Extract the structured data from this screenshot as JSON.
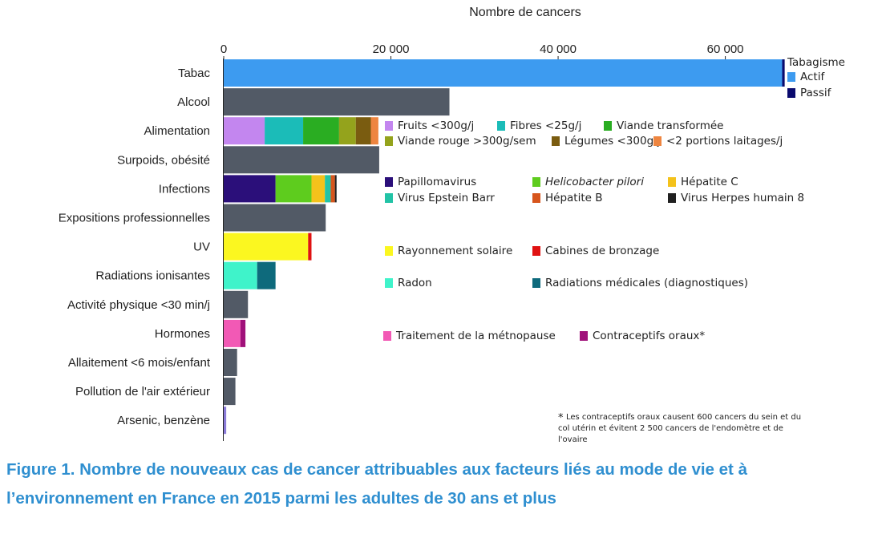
{
  "chart_data": {
    "type": "bar",
    "orientation": "horizontal",
    "stacked": true,
    "title": "Nombre de cancers",
    "xlim": [
      0,
      68000
    ],
    "xticks": [
      "0",
      "20 000",
      "40 000",
      "60 000"
    ],
    "xtick_values": [
      0,
      20000,
      40000,
      60000
    ],
    "categories": [
      {
        "label": "Tabac",
        "segments": [
          {
            "name": "Actif",
            "value": 66800,
            "color": "#3d9bf0"
          },
          {
            "name": "Passif",
            "value": 300,
            "color": "#0a0a6e"
          }
        ]
      },
      {
        "label": "Alcool",
        "segments": [
          {
            "name": "Alcool",
            "value": 27000,
            "color": "#525a66"
          }
        ]
      },
      {
        "label": "Alimentation",
        "segments": [
          {
            "name": "Fruits <300g/j",
            "value": 4900,
            "color": "#c386ef"
          },
          {
            "name": "Fibres <25g/j",
            "value": 4600,
            "color": "#1bbcb8"
          },
          {
            "name": "Viande transformée",
            "value": 4300,
            "color": "#2aad22"
          },
          {
            "name": "Viande rouge >300g/sem",
            "value": 2000,
            "color": "#94a31c"
          },
          {
            "name": "Légumes <300g/j",
            "value": 1800,
            "color": "#7a5c10"
          },
          {
            "name": "<2 portions laitages/j",
            "value": 900,
            "color": "#ee8540"
          }
        ]
      },
      {
        "label": "Surpoids, obésité",
        "segments": [
          {
            "name": "Surpoids, obésité",
            "value": 18600,
            "color": "#525a66"
          }
        ]
      },
      {
        "label": "Infections",
        "segments": [
          {
            "name": "Papillomavirus",
            "value": 6200,
            "color": "#2b0f7a"
          },
          {
            "name": "Helicobacter pilori",
            "value": 4300,
            "color": "#5ecc1e"
          },
          {
            "name": "Hépatite C",
            "value": 1600,
            "color": "#f4c21b"
          },
          {
            "name": "Virus Epstein Barr",
            "value": 700,
            "color": "#22c3a6"
          },
          {
            "name": "Hépatite B",
            "value": 500,
            "color": "#d7551c"
          },
          {
            "name": "Virus Herpes humain 8",
            "value": 200,
            "color": "#202020"
          }
        ]
      },
      {
        "label": "Expositions professionnelles",
        "segments": [
          {
            "name": "Expositions professionnelles",
            "value": 12200,
            "color": "#525a66"
          }
        ]
      },
      {
        "label": "UV",
        "segments": [
          {
            "name": "Rayonnement solaire",
            "value": 10100,
            "color": "#fbf720"
          },
          {
            "name": "Cabines de bronzage",
            "value": 400,
            "color": "#e01212"
          }
        ]
      },
      {
        "label": "Radiations ionisantes",
        "segments": [
          {
            "name": "Radon",
            "value": 4000,
            "color": "#3ff3ca"
          },
          {
            "name": "Radiations médicales (diagnostiques)",
            "value": 2200,
            "color": "#0e6a7c"
          }
        ]
      },
      {
        "label": "Activité physique <30 min/j",
        "segments": [
          {
            "name": "Activité physique <30 min/j",
            "value": 2900,
            "color": "#525a66"
          }
        ]
      },
      {
        "label": "Hormones",
        "segments": [
          {
            "name": "Traitement de la métnopause",
            "value": 2000,
            "color": "#f259b5"
          },
          {
            "name": "Contraceptifs oraux*",
            "value": 600,
            "color": "#a0117a"
          }
        ]
      },
      {
        "label": "Allaitement <6 mois/enfant",
        "segments": [
          {
            "name": "Allaitement <6 mois/enfant",
            "value": 1600,
            "color": "#525a66"
          }
        ]
      },
      {
        "label": "Pollution de l'air extérieur",
        "segments": [
          {
            "name": "Pollution de l'air extérieur",
            "value": 1400,
            "color": "#525a66"
          }
        ]
      },
      {
        "label": "Arsenic, benzène",
        "segments": [
          {
            "name": "Arsenic, benzène",
            "value": 300,
            "color": "#8a7ad8"
          }
        ]
      }
    ],
    "legend_groups": [
      {
        "title": "Tabagisme",
        "items": [
          {
            "name": "Actif",
            "color": "#3d9bf0"
          },
          {
            "name": "Passif",
            "color": "#0a0a6e"
          }
        ]
      },
      {
        "title": "",
        "items": [
          {
            "name": "Fruits <300g/j",
            "color": "#c386ef"
          },
          {
            "name": "Fibres <25g/j",
            "color": "#1bbcb8"
          },
          {
            "name": "Viande transformée",
            "color": "#2aad22"
          }
        ]
      },
      {
        "title": "",
        "items": [
          {
            "name": "Viande rouge >300g/sem",
            "color": "#94a31c"
          },
          {
            "name": "Légumes <300g/j",
            "color": "#7a5c10"
          },
          {
            "name": "<2 portions laitages/j",
            "color": "#ee8540"
          }
        ]
      },
      {
        "title": "",
        "items": [
          {
            "name": "Papillomavirus",
            "color": "#2b0f7a"
          },
          {
            "name": "Helicobacter pilori",
            "color": "#5ecc1e",
            "italic": true
          },
          {
            "name": "Hépatite C",
            "color": "#f4c21b"
          }
        ]
      },
      {
        "title": "",
        "items": [
          {
            "name": "Virus Epstein Barr",
            "color": "#22c3a6"
          },
          {
            "name": "Hépatite B",
            "color": "#d7551c"
          },
          {
            "name": "Virus Herpes humain 8",
            "color": "#202020"
          }
        ]
      },
      {
        "title": "",
        "items": [
          {
            "name": "Rayonnement solaire",
            "color": "#fbf720"
          },
          {
            "name": "Cabines de bronzage",
            "color": "#e01212"
          }
        ]
      },
      {
        "title": "",
        "items": [
          {
            "name": "Radon",
            "color": "#3ff3ca"
          },
          {
            "name": "Radiations médicales (diagnostiques)",
            "color": "#0e6a7c"
          }
        ]
      },
      {
        "title": "",
        "items": [
          {
            "name": "Traitement de la métnopause",
            "color": "#f259b5"
          },
          {
            "name": "Contraceptifs oraux*",
            "color": "#a0117a"
          }
        ]
      }
    ],
    "footnote": {
      "star": "*",
      "lines": [
        "Les contraceptifs oraux causent 600 cancers du sein et du",
        "col utérin et évitent 2 500 cancers de l'endomètre et de",
        "l'ovaire"
      ]
    }
  },
  "caption": "Figure 1. Nombre de nouveaux cas de cancer attribuables aux facteurs liés au mode de vie et à l’environnement en France en 2015 parmi les adultes de 30 ans et plus"
}
